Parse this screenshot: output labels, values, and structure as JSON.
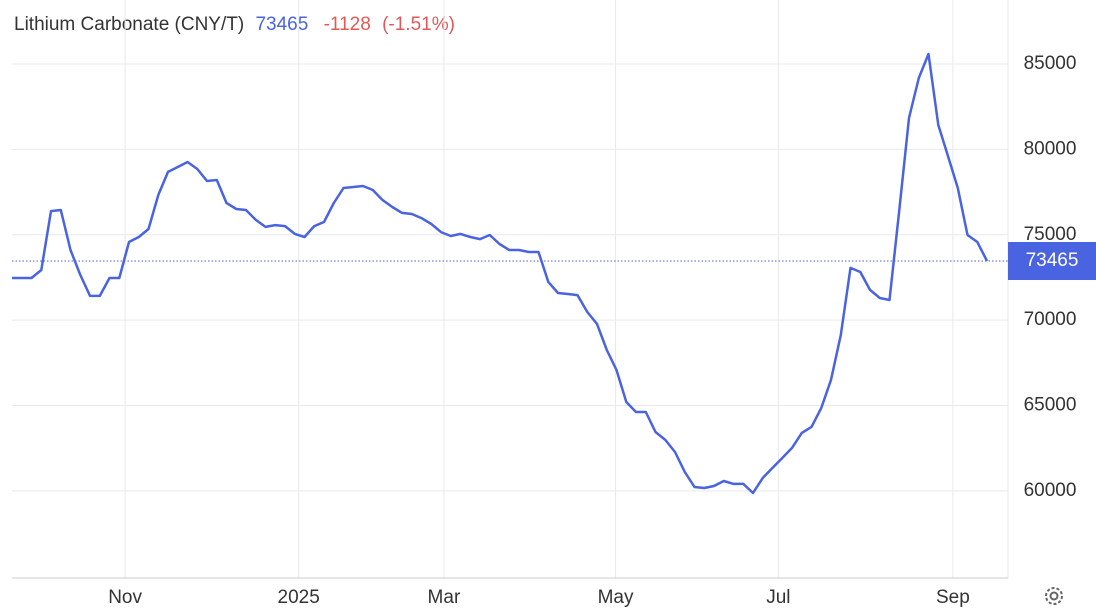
{
  "chart_data": {
    "type": "line",
    "title": "Lithium Carbonate (CNY/T)",
    "last_value": 73465,
    "change": -1128,
    "change_percent": "(-1.51%)",
    "series": [
      {
        "name": "Lithium Carbonate",
        "color": "#4a63e0",
        "values": [
          72470,
          72470,
          72470,
          72940,
          76390,
          76450,
          74110,
          72650,
          71420,
          71420,
          72470,
          72470,
          74580,
          74870,
          75340,
          77330,
          78680,
          78970,
          79260,
          78850,
          78150,
          78210,
          76860,
          76510,
          76450,
          75870,
          75460,
          75570,
          75510,
          75050,
          74870,
          75510,
          75750,
          76860,
          77740,
          77800,
          77860,
          77620,
          77040,
          76630,
          76280,
          76220,
          75980,
          75630,
          75160,
          74930,
          75050,
          74870,
          74750,
          74990,
          74460,
          74110,
          74110,
          73990,
          73990,
          72240,
          71590,
          71530,
          71470,
          70480,
          69780,
          68250,
          67080,
          65210,
          64620,
          64620,
          63450,
          62990,
          62280,
          61110,
          60230,
          60170,
          60290,
          60580,
          60410,
          60410,
          59880,
          60760,
          61350,
          61930,
          62520,
          63400,
          63750,
          64860,
          66500,
          69130,
          73060,
          72820,
          71770,
          71300,
          71180,
          76450,
          81840,
          84180,
          85590,
          81430,
          79610,
          77740,
          74990,
          74580,
          73465
        ]
      }
    ],
    "xlim": [
      0,
      100
    ],
    "xticks": [
      {
        "value": 11.6,
        "label": "Nov"
      },
      {
        "value": 29.4,
        "label": "2025"
      },
      {
        "value": 44.3,
        "label": "Mar"
      },
      {
        "value": 61.9,
        "label": "May"
      },
      {
        "value": 78.6,
        "label": "Jul"
      },
      {
        "value": 96.5,
        "label": "Sep"
      }
    ],
    "ylim": [
      54900,
      88750
    ],
    "yticks": [
      60000,
      65000,
      70000,
      75000,
      80000,
      85000
    ],
    "grid": true
  }
}
